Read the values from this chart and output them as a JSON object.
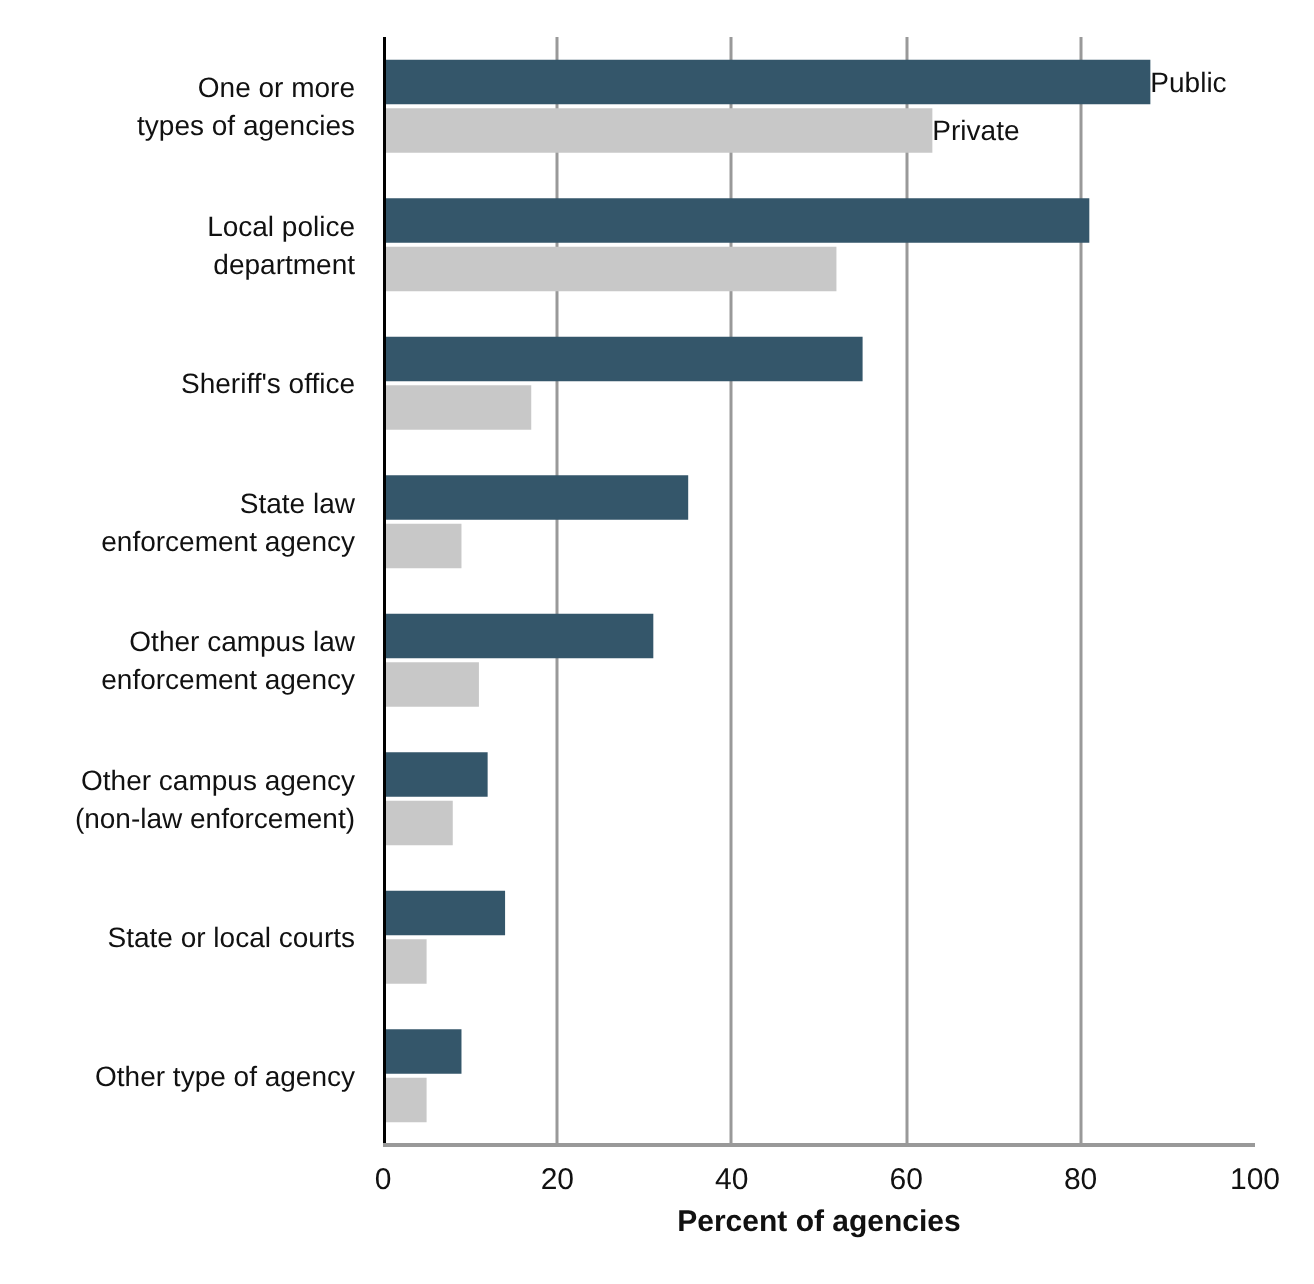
{
  "chart_data": {
    "type": "bar",
    "orientation": "horizontal",
    "xlabel": "Percent of agencies",
    "categories": [
      "One or more types of agencies",
      "Local police department",
      "Sheriff's office",
      "State law enforcement agency",
      "Other campus law enforcement agency",
      "Other campus agency (non-law enforcement)",
      "State or local courts",
      "Other type of agency"
    ],
    "series": [
      {
        "name": "Public",
        "color": "#34566a",
        "values": [
          88,
          81,
          55,
          35,
          31,
          12,
          14,
          9
        ]
      },
      {
        "name": "Private",
        "color": "#c8c8c8",
        "values": [
          63,
          52,
          17,
          9,
          11,
          8,
          5,
          5
        ]
      }
    ],
    "xlim": [
      0,
      100
    ],
    "xticks": [
      0,
      20,
      40,
      60,
      80,
      100
    ],
    "grid": "x"
  }
}
